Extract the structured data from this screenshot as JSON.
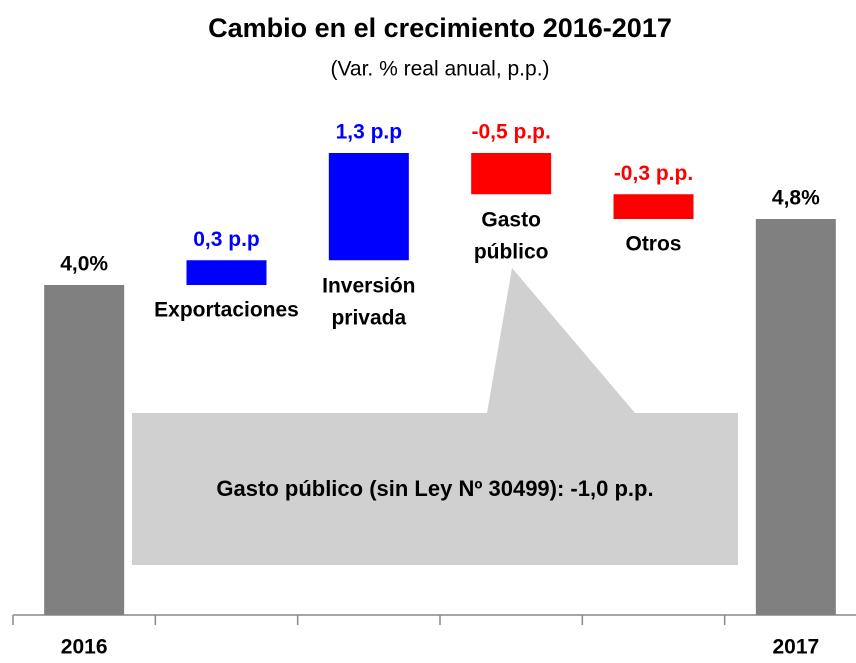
{
  "chart_data": {
    "type": "waterfall",
    "title": "Cambio en el crecimiento 2016-2017",
    "subtitle": "(Var. % real anual, p.p.)",
    "categories": [
      "2016",
      "Exportaciones",
      "Inversión privada",
      "Gasto público",
      "Otros",
      "2017"
    ],
    "values": [
      4.0,
      0.3,
      1.3,
      -0.5,
      -0.3,
      4.8
    ],
    "value_labels": [
      "4,0%",
      "0,3 p.p",
      "1,3 p.p",
      "-0,5 p.p.",
      "-0,3 p.p.",
      "4,8%"
    ],
    "totals": [
      true,
      false,
      false,
      false,
      false,
      true
    ],
    "colors": {
      "total": "#808080",
      "increase": "#0000ff",
      "decrease": "#ff0000"
    },
    "ylim": [
      0,
      6
    ],
    "annotation": "Gasto público (sin Ley Nº 30499): -1,0 p.p."
  }
}
